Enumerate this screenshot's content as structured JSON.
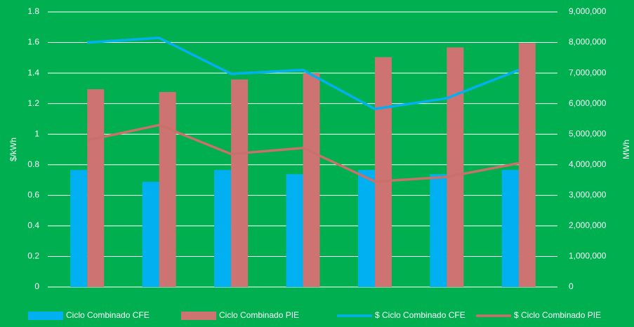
{
  "chart_data": {
    "type": "bar_line",
    "y_label": "$/kWh",
    "y2_label": "MWh",
    "categories": [
      null,
      null,
      null,
      null,
      null,
      null,
      null
    ],
    "series": [
      {
        "name": "Ciclo Combinado CFE",
        "type": "bar",
        "axis": "y2",
        "color": "#00b0f0",
        "values": [
          3830000,
          3440000,
          3830000,
          3690000,
          3830000,
          3690000,
          3830000
        ]
      },
      {
        "name": "Ciclo Combinado PIE",
        "type": "bar",
        "axis": "y2",
        "color": "#cd7472",
        "values": [
          6470000,
          6380000,
          6790000,
          7000000,
          7520000,
          7840000,
          7980000
        ]
      },
      {
        "name": "$ Ciclo Combinado CFE",
        "type": "line",
        "axis": "y",
        "color": "#00b0f0",
        "values": [
          1.6,
          1.63,
          1.395,
          1.42,
          1.165,
          1.235,
          1.42
        ]
      },
      {
        "name": "$ Ciclo Combinado PIE",
        "type": "line",
        "axis": "y",
        "color": "#c8706a",
        "values": [
          0.96,
          1.06,
          0.87,
          0.91,
          0.69,
          0.72,
          0.81
        ]
      }
    ],
    "ylim": [
      0,
      1.8
    ],
    "yticks": [
      0,
      0.2,
      0.4,
      0.6,
      0.8,
      1,
      1.2,
      1.4,
      1.6,
      1.8
    ],
    "y2lim": [
      0,
      9000000
    ],
    "y2ticks": [
      0,
      {
        "value": 1000000,
        "label": "1,000,000"
      },
      {
        "value": 2000000,
        "label": "2,000,000"
      },
      {
        "value": 3000000,
        "label": "3,000,000"
      },
      {
        "value": 4000000,
        "label": "4,000,000"
      },
      {
        "value": 5000000,
        "label": "5,000,000"
      },
      {
        "value": 6000000,
        "label": "6,000,000"
      },
      {
        "value": 7000000,
        "label": "7,000,000"
      },
      {
        "value": 8000000,
        "label": "8,000,000"
      },
      {
        "value": 9000000,
        "label": "9,000,000"
      }
    ],
    "grid": true,
    "legend": "bottom"
  }
}
